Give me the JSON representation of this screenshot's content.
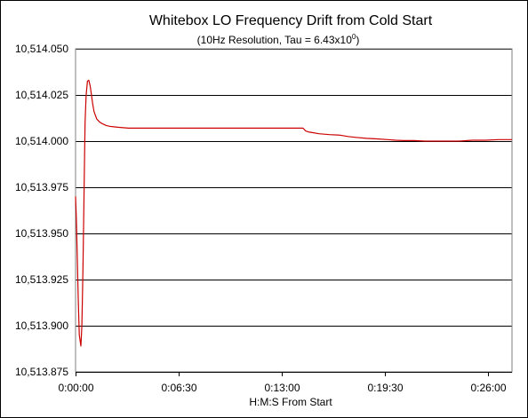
{
  "chart_data": {
    "type": "line",
    "title": "Whitebox LO Frequency Drift from Cold Start",
    "subtitle_main": "(10Hz Resolution, Tau = 6.43x10",
    "subtitle_exp": "0",
    "subtitle_end": ")",
    "xlabel": "H:M:S From Start",
    "ylabel": "",
    "x_unit": "seconds",
    "xlim": [
      0,
      1650
    ],
    "ylim": [
      10513.875,
      10514.05
    ],
    "y_ticks": [
      10514.05,
      10514.025,
      10514.0,
      10513.975,
      10513.95,
      10513.925,
      10513.9,
      10513.875
    ],
    "y_tick_labels": [
      "10,514.050",
      "10,514.025",
      "10,514.000",
      "10,513.975",
      "10,513.950",
      "10,513.925",
      "10,513.900",
      "10,513.875"
    ],
    "x_ticks": [
      0,
      390,
      780,
      1170,
      1560
    ],
    "x_tick_labels": [
      "0:00:00",
      "0:06:30",
      "0:13:00",
      "0:19:30",
      "0:26:00"
    ],
    "grid": "horizontal",
    "legend": "none",
    "line_color": "#cc0000",
    "plot_bg": "#ffffff",
    "grid_color": "#000000",
    "series": [
      {
        "x": [
          0,
          3,
          6,
          10,
          14,
          20,
          24,
          28,
          32,
          36,
          40,
          45,
          50,
          55,
          60,
          65,
          70,
          80,
          90,
          100,
          115,
          130,
          160,
          200,
          260,
          300,
          400,
          500,
          600,
          700,
          760,
          800,
          840,
          860,
          870,
          880,
          900,
          920,
          960,
          1000,
          1030,
          1060,
          1100,
          1140,
          1180,
          1210,
          1240,
          1280,
          1320,
          1360,
          1400,
          1450,
          1500,
          1550,
          1600,
          1650
        ],
        "y": [
          10513.97,
          10513.958,
          10513.94,
          10513.915,
          10513.895,
          10513.889,
          10513.9,
          10513.93,
          10513.97,
          10514.01,
          10514.025,
          10514.0325,
          10514.033,
          10514.03,
          10514.025,
          10514.02,
          10514.016,
          10514.012,
          10514.0105,
          10514.0095,
          10514.0085,
          10514.008,
          10514.0075,
          10514.007,
          10514.007,
          10514.007,
          10514.007,
          10514.007,
          10514.007,
          10514.007,
          10514.007,
          10514.007,
          10514.007,
          10514.007,
          10514.0055,
          10514.005,
          10514.0045,
          10514.004,
          10514.0035,
          10514.0032,
          10514.0025,
          10514.002,
          10514.0015,
          10514.0012,
          10514.0008,
          10514.0005,
          10514.0003,
          10514.0003,
          10514.0,
          10514.0,
          10514.0,
          10514.0,
          10514.0005,
          10514.0005,
          10514.0008,
          10514.0008
        ]
      }
    ]
  }
}
